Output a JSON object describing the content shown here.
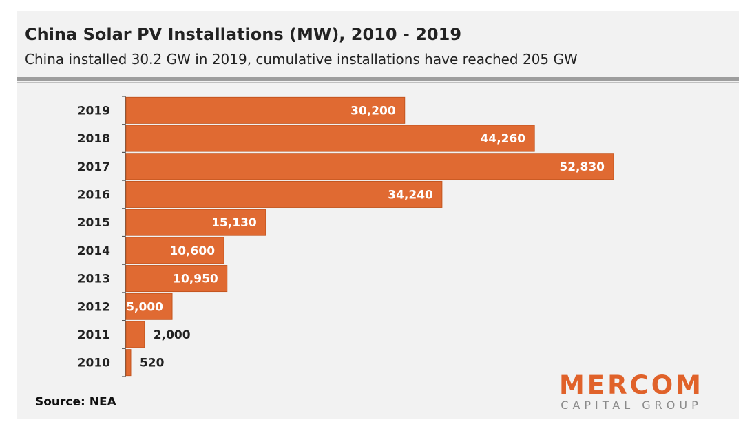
{
  "header": {
    "title": "China Solar PV Installations (MW), 2010 - 2019",
    "subtitle": "China installed 30.2 GW in 2019, cumulative installations have reached 205 GW"
  },
  "footer": {
    "source": "Source: NEA"
  },
  "logo": {
    "main": "MERCOM",
    "sub": "CAPITAL GROUP"
  },
  "colors": {
    "bar": "#e06a32",
    "bar_stroke": "#c4561f",
    "label_inside": "#ffffff",
    "label_outside": "#222222",
    "axis": "#555555"
  },
  "chart_data": {
    "type": "bar",
    "orientation": "horizontal",
    "title": "China Solar PV Installations (MW), 2010 - 2019",
    "subtitle": "China installed 30.2 GW in 2019, cumulative installations have reached 205 GW",
    "categories": [
      "2019",
      "2018",
      "2017",
      "2016",
      "2015",
      "2014",
      "2013",
      "2012",
      "2011",
      "2010"
    ],
    "values": [
      30200,
      44260,
      52830,
      34240,
      15130,
      10600,
      10950,
      5000,
      2000,
      520
    ],
    "value_labels": [
      "30,200",
      "44,260",
      "52,830",
      "34,240",
      "15,130",
      "10,600",
      "10,950",
      "5,000",
      "2,000",
      "520"
    ],
    "xlabel": "",
    "ylabel": "",
    "xlim": [
      0,
      52830
    ],
    "grid": false,
    "legend": "none"
  }
}
